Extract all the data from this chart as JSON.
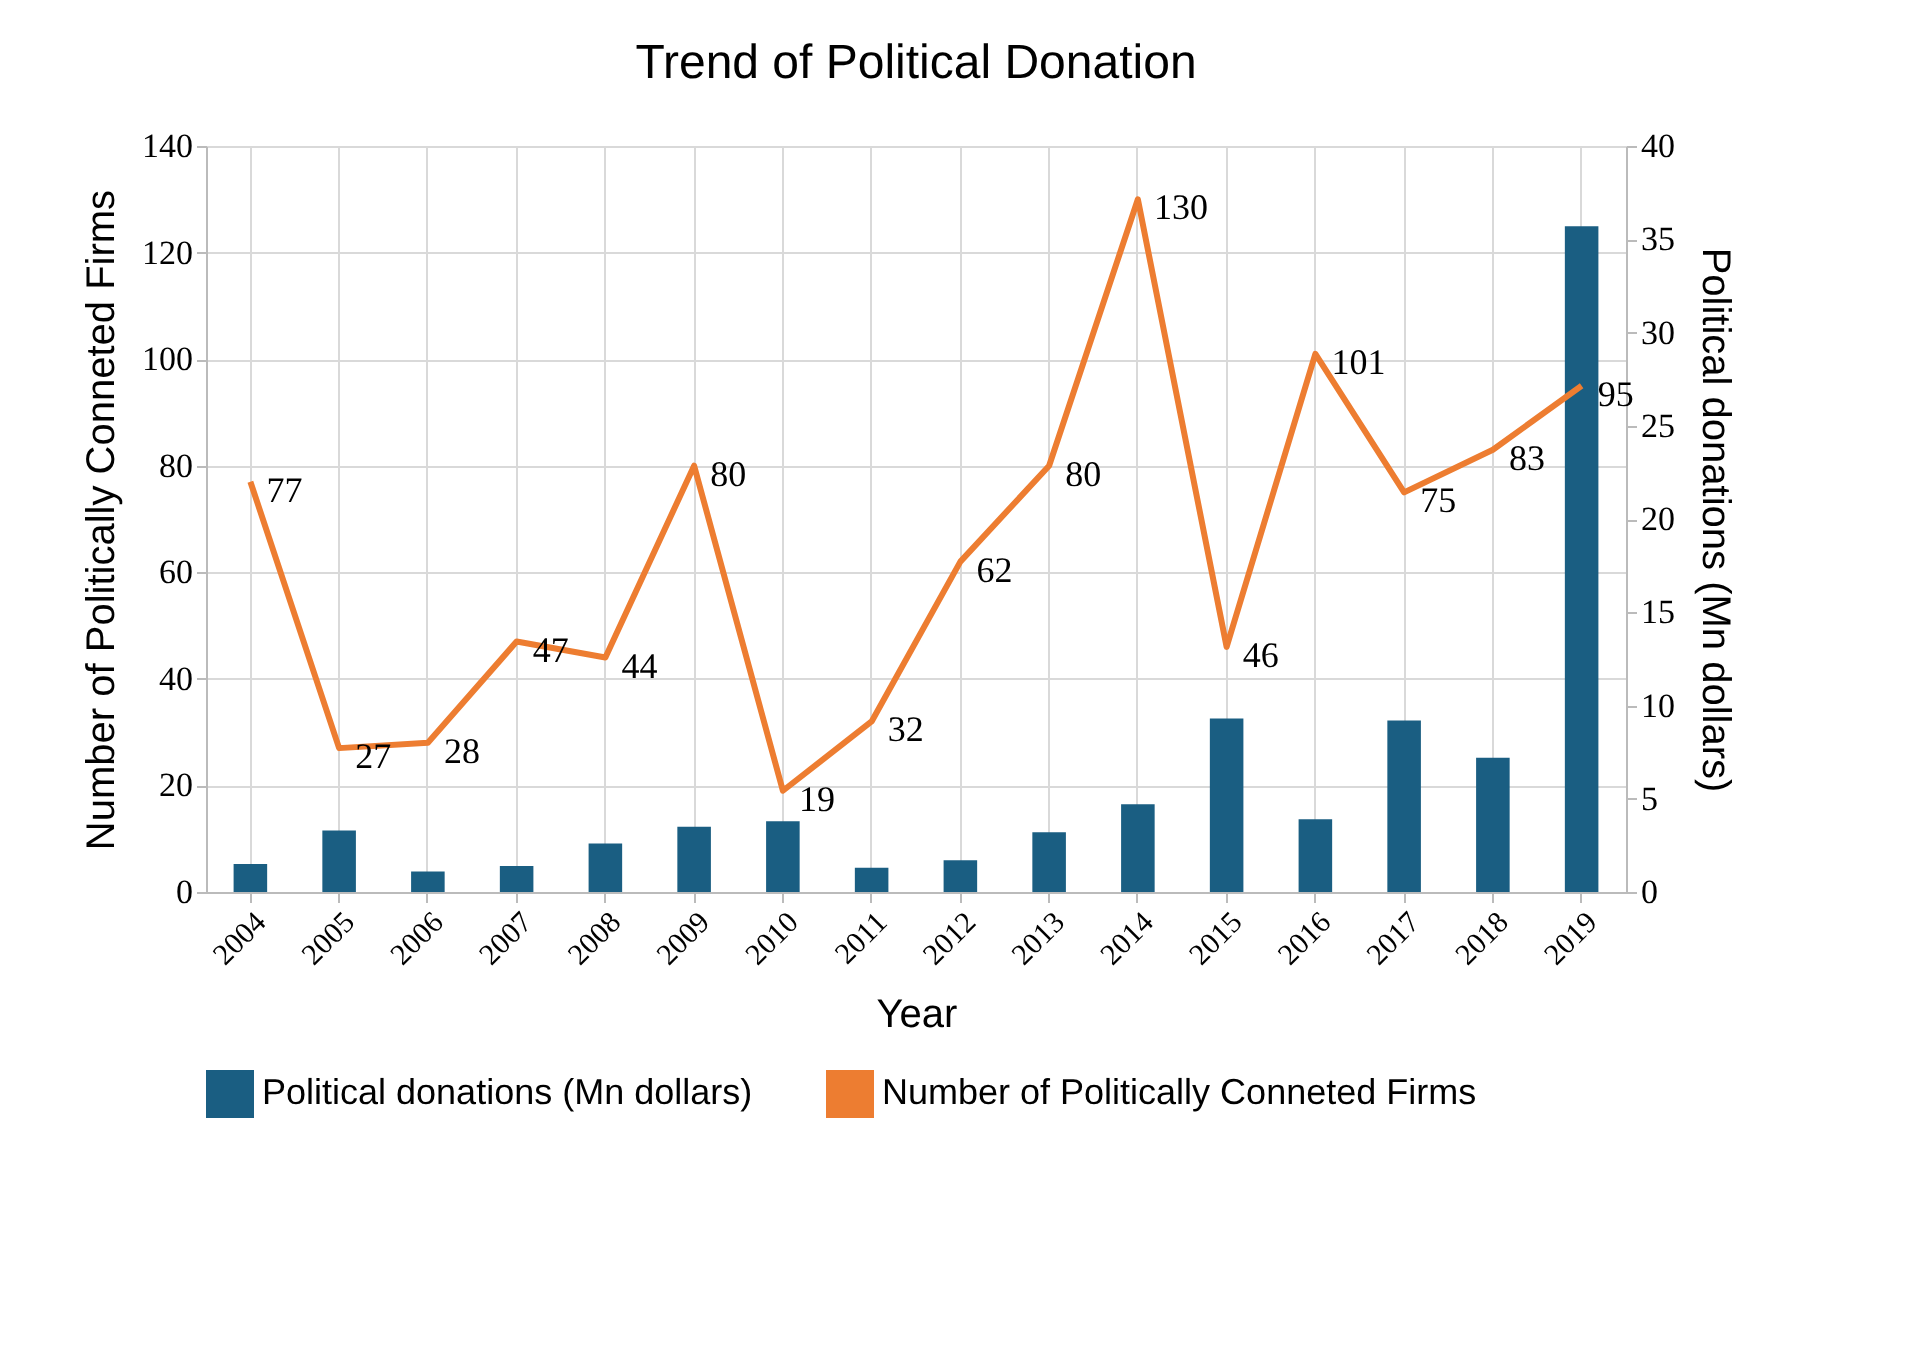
{
  "chart_data": {
    "type": "bar",
    "title": "Trend of Political Donation",
    "xlabel": "Year",
    "ylabel": "Number of Politically Conneted Firms",
    "y2label": "Political donations (Mn dollars)",
    "categories": [
      "2004",
      "2005",
      "2006",
      "2007",
      "2008",
      "2009",
      "2010",
      "2011",
      "2012",
      "2013",
      "2014",
      "2015",
      "2016",
      "2017",
      "2018",
      "2019"
    ],
    "series": [
      {
        "name": "Political donations (Mn dollars)",
        "axis": "y2",
        "color": "#1a5e82",
        "values": [
          1.5,
          3.3,
          1.1,
          1.4,
          2.6,
          3.5,
          3.8,
          1.3,
          1.7,
          3.2,
          4.7,
          9.3,
          3.9,
          9.2,
          7.2,
          35.7
        ]
      },
      {
        "name": "Number of Politically Conneted Firms",
        "type": "line",
        "axis": "y",
        "color": "#ed7d31",
        "data_labels": true,
        "values": [
          77,
          27,
          28,
          47,
          44,
          80,
          19,
          32,
          62,
          80,
          130,
          46,
          101,
          75,
          83,
          95
        ]
      }
    ],
    "ylim": [
      0,
      140
    ],
    "yticks": [
      0,
      20,
      40,
      60,
      80,
      100,
      120,
      140
    ],
    "y2lim": [
      0,
      40
    ],
    "y2ticks": [
      0,
      5,
      10,
      15,
      20,
      25,
      30,
      35,
      40
    ],
    "grid": true,
    "legend": "bottom"
  }
}
